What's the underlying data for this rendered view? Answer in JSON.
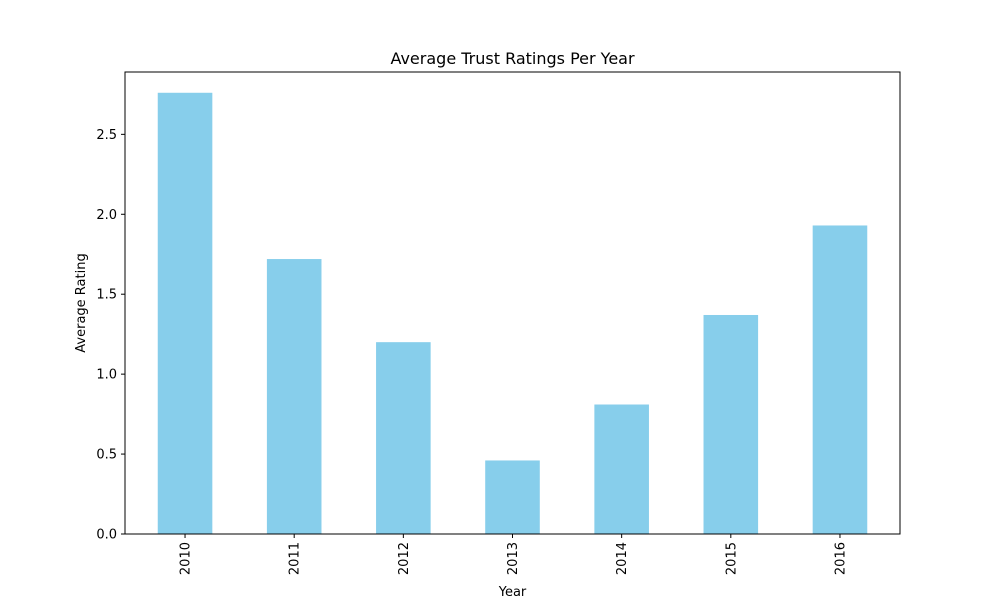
{
  "chart_data": {
    "type": "bar",
    "title": "Average Trust Ratings Per Year",
    "xlabel": "Year",
    "ylabel": "Average Rating",
    "categories": [
      "2010",
      "2011",
      "2012",
      "2013",
      "2014",
      "2015",
      "2016"
    ],
    "values": [
      2.76,
      1.72,
      1.2,
      0.46,
      0.81,
      1.37,
      1.93
    ],
    "ylim": [
      0,
      2.89
    ],
    "yticks": [
      0.0,
      0.5,
      1.0,
      1.5,
      2.0,
      2.5
    ],
    "ytick_labels": [
      "0.0",
      "0.5",
      "1.0",
      "1.5",
      "2.0",
      "2.5"
    ],
    "xtick_rotation": "vertical",
    "grid": false,
    "legend": "none",
    "bar_color": "#87ceeb"
  }
}
